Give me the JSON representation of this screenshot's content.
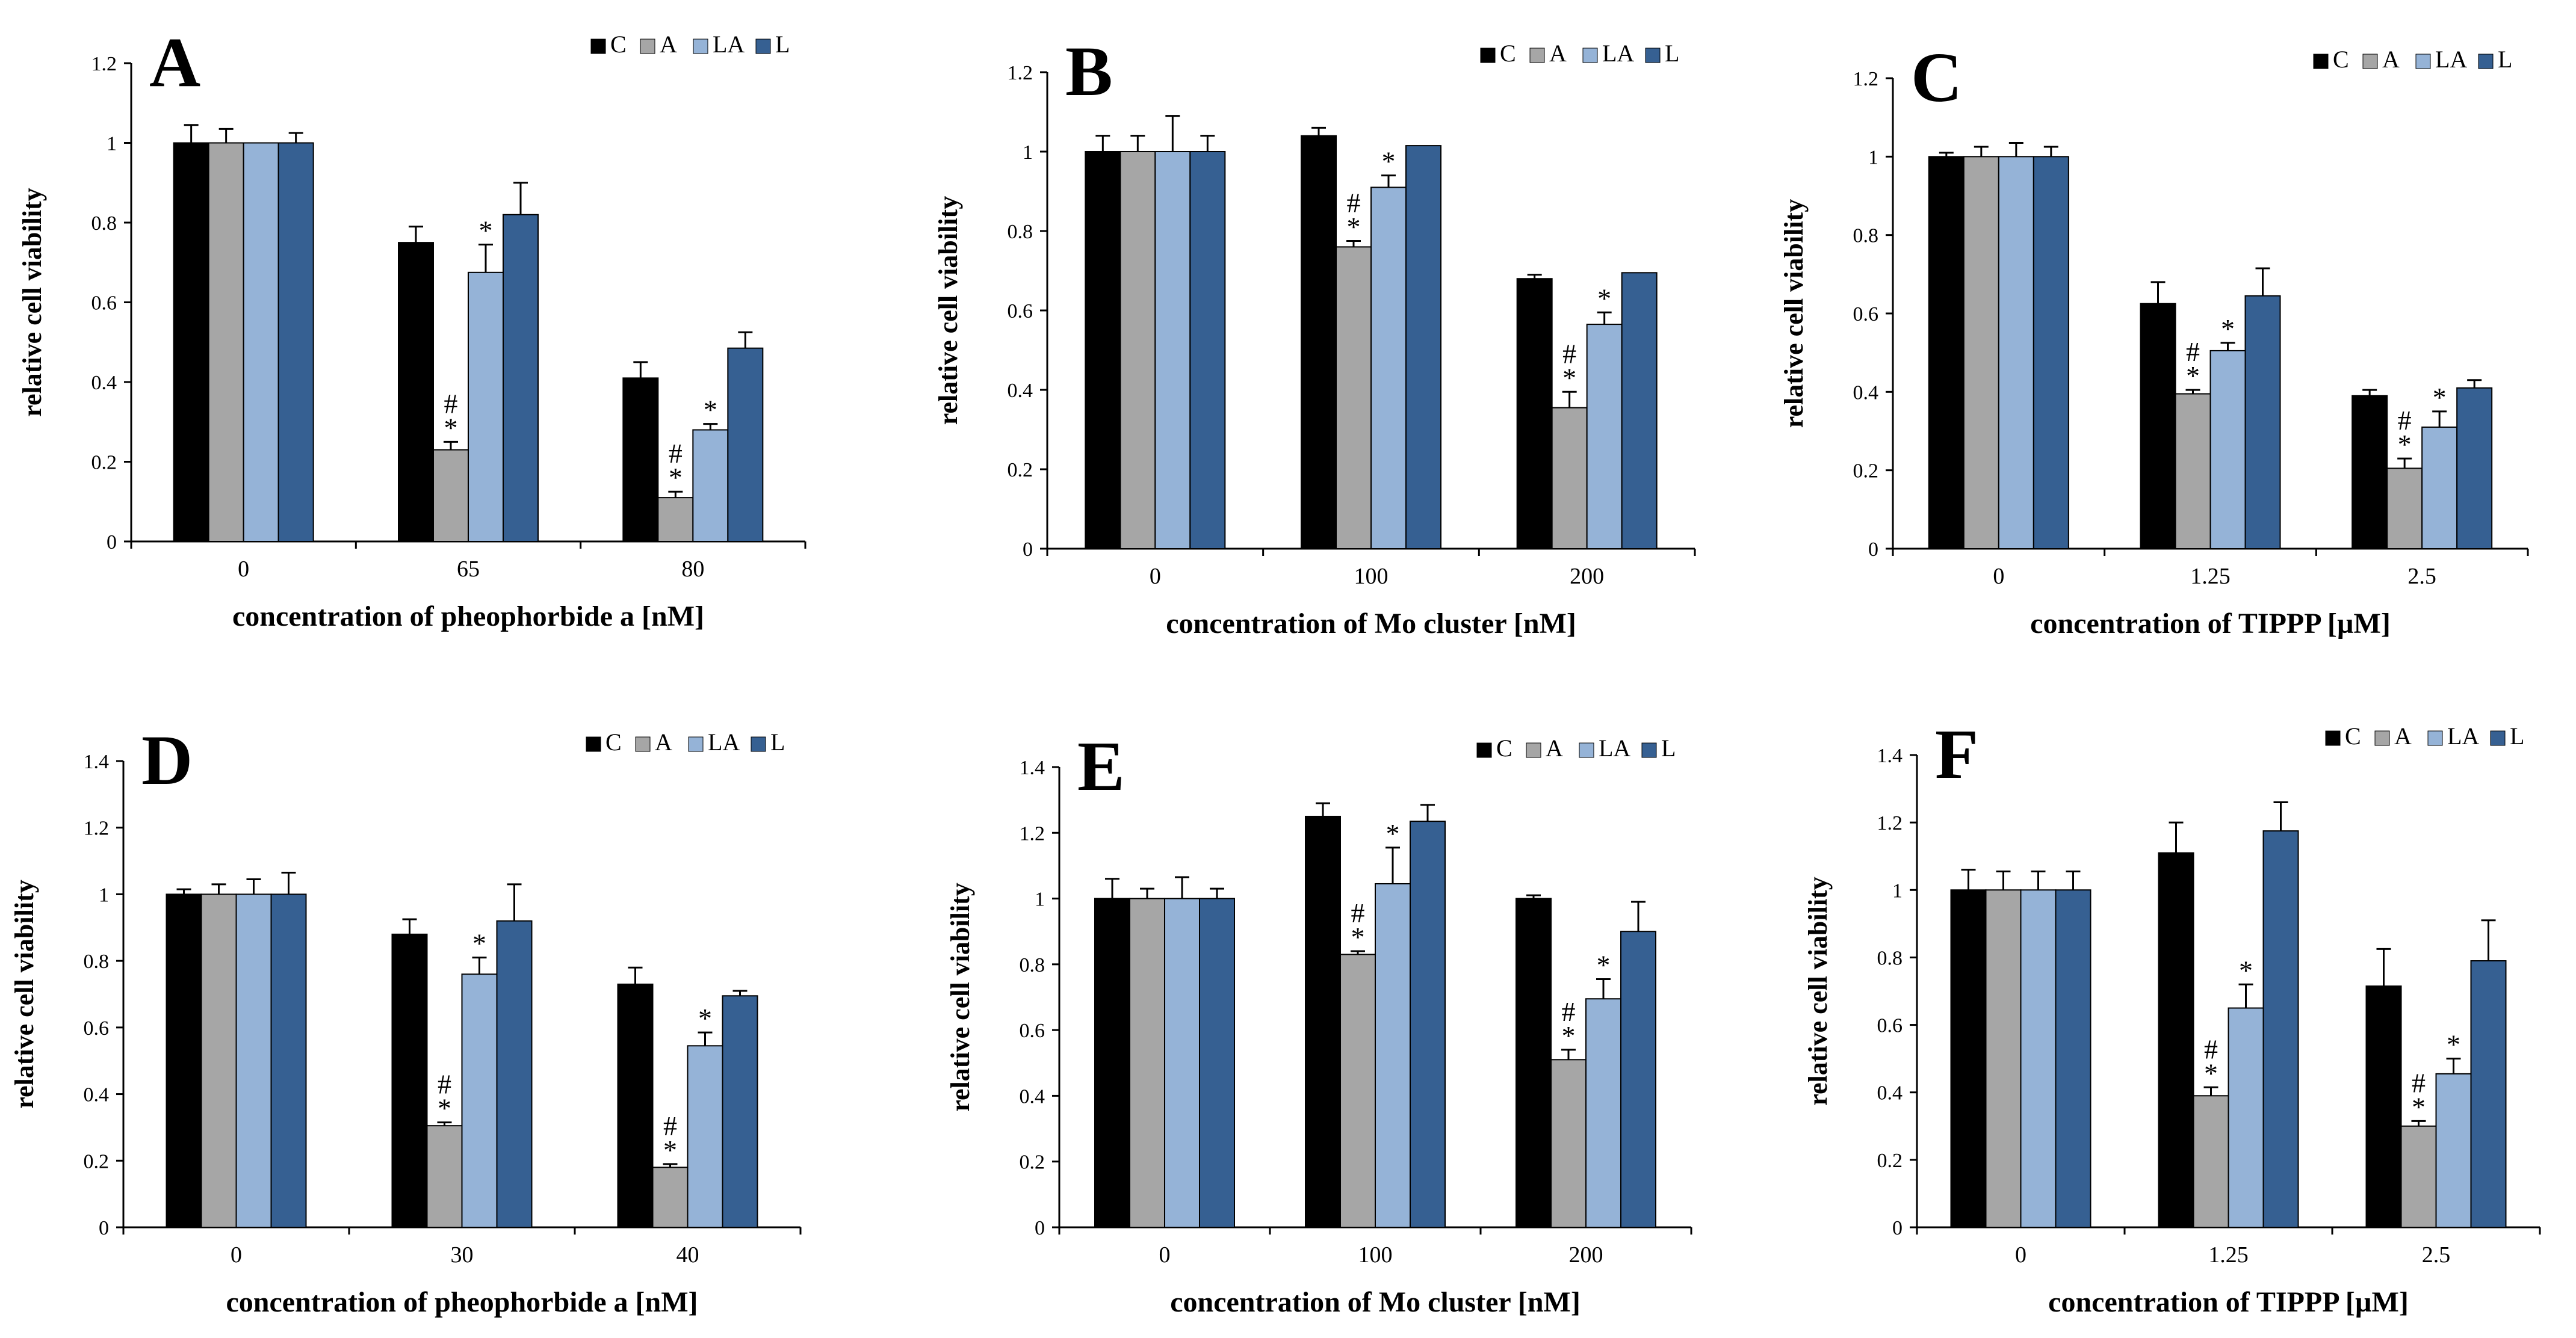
{
  "chart_data": [
    {
      "type": "bar",
      "panel": "A",
      "categories": [
        "0",
        "65",
        "80"
      ],
      "series": [
        {
          "name": "C",
          "color": "#000000",
          "values": [
            1.0,
            0.75,
            0.41
          ],
          "errors": [
            0.045,
            0.04,
            0.04
          ]
        },
        {
          "name": "A",
          "color": "#a6a6a6",
          "values": [
            1.0,
            0.23,
            0.11
          ],
          "errors": [
            0.035,
            0.02,
            0.015
          ]
        },
        {
          "name": "LA",
          "color": "#95b3d7",
          "values": [
            1.0,
            0.675,
            0.28
          ],
          "errors": [
            0.0,
            0.07,
            0.015
          ]
        },
        {
          "name": "L",
          "color": "#366092",
          "values": [
            1.0,
            0.82,
            0.485
          ],
          "errors": [
            0.025,
            0.08,
            0.04
          ]
        }
      ],
      "annotations": [
        {
          "category": "65",
          "series": "A",
          "text": "*\n#"
        },
        {
          "category": "65",
          "series": "LA",
          "text": "*"
        },
        {
          "category": "80",
          "series": "A",
          "text": "*\n#"
        },
        {
          "category": "80",
          "series": "LA",
          "text": "*"
        }
      ],
      "yticks": [
        "0",
        "0.2",
        "0.4",
        "0.6",
        "0.8",
        "1",
        "1.2"
      ],
      "ylim": [
        0,
        1.2
      ],
      "xlabel": "concentration of pheophorbide a [nM]",
      "ylabel": "relative cell viability",
      "legend": "top-right"
    },
    {
      "type": "bar",
      "panel": "B",
      "categories": [
        "0",
        "100",
        "200"
      ],
      "series": [
        {
          "name": "C",
          "color": "#000000",
          "values": [
            1.0,
            1.04,
            0.68
          ],
          "errors": [
            0.04,
            0.02,
            0.01
          ]
        },
        {
          "name": "A",
          "color": "#a6a6a6",
          "values": [
            1.0,
            0.76,
            0.355
          ],
          "errors": [
            0.04,
            0.015,
            0.04
          ]
        },
        {
          "name": "LA",
          "color": "#95b3d7",
          "values": [
            1.0,
            0.91,
            0.565
          ],
          "errors": [
            0.09,
            0.03,
            0.03
          ]
        },
        {
          "name": "L",
          "color": "#366092",
          "values": [
            1.0,
            1.015,
            0.695
          ],
          "errors": [
            0.04,
            0.0,
            0.0
          ]
        }
      ],
      "annotations": [
        {
          "category": "100",
          "series": "A",
          "text": "*\n#"
        },
        {
          "category": "100",
          "series": "LA",
          "text": "*"
        },
        {
          "category": "200",
          "series": "A",
          "text": "*\n#"
        },
        {
          "category": "200",
          "series": "LA",
          "text": "*"
        }
      ],
      "yticks": [
        "0",
        "0.2",
        "0.4",
        "0.6",
        "0.8",
        "1",
        "1.2"
      ],
      "ylim": [
        0,
        1.2
      ],
      "xlabel": "concentration of Mo cluster [nM]",
      "ylabel": "relative cell viability",
      "legend": "top-right"
    },
    {
      "type": "bar",
      "panel": "C",
      "categories": [
        "0",
        "1.25",
        "2.5"
      ],
      "series": [
        {
          "name": "C",
          "color": "#000000",
          "values": [
            1.0,
            0.625,
            0.39
          ],
          "errors": [
            0.01,
            0.055,
            0.015
          ]
        },
        {
          "name": "A",
          "color": "#a6a6a6",
          "values": [
            1.0,
            0.395,
            0.205
          ],
          "errors": [
            0.025,
            0.01,
            0.025
          ]
        },
        {
          "name": "LA",
          "color": "#95b3d7",
          "values": [
            1.0,
            0.505,
            0.31
          ],
          "errors": [
            0.035,
            0.02,
            0.04
          ]
        },
        {
          "name": "L",
          "color": "#366092",
          "values": [
            1.0,
            0.645,
            0.41
          ],
          "errors": [
            0.025,
            0.07,
            0.02
          ]
        }
      ],
      "annotations": [
        {
          "category": "1.25",
          "series": "A",
          "text": "*\n#"
        },
        {
          "category": "1.25",
          "series": "LA",
          "text": "*"
        },
        {
          "category": "2.5",
          "series": "A",
          "text": "*\n#"
        },
        {
          "category": "2.5",
          "series": "LA",
          "text": "*"
        }
      ],
      "yticks": [
        "0",
        "0.2",
        "0.4",
        "0.6",
        "0.8",
        "1",
        "1.2"
      ],
      "ylim": [
        0,
        1.2
      ],
      "xlabel": "concentration of TIPPP [µM]",
      "ylabel": "relative cell viability",
      "legend": "top-right"
    },
    {
      "type": "bar",
      "panel": "D",
      "categories": [
        "0",
        "30",
        "40"
      ],
      "series": [
        {
          "name": "C",
          "color": "#000000",
          "values": [
            1.0,
            0.88,
            0.73
          ],
          "errors": [
            0.015,
            0.045,
            0.05
          ]
        },
        {
          "name": "A",
          "color": "#a6a6a6",
          "values": [
            1.0,
            0.305,
            0.18
          ],
          "errors": [
            0.03,
            0.01,
            0.01
          ]
        },
        {
          "name": "LA",
          "color": "#95b3d7",
          "values": [
            1.0,
            0.76,
            0.545
          ],
          "errors": [
            0.045,
            0.05,
            0.04
          ]
        },
        {
          "name": "L",
          "color": "#366092",
          "values": [
            1.0,
            0.92,
            0.695
          ],
          "errors": [
            0.065,
            0.11,
            0.015
          ]
        }
      ],
      "annotations": [
        {
          "category": "30",
          "series": "A",
          "text": "*\n#"
        },
        {
          "category": "30",
          "series": "LA",
          "text": "*"
        },
        {
          "category": "40",
          "series": "A",
          "text": "*\n#"
        },
        {
          "category": "40",
          "series": "LA",
          "text": "*"
        }
      ],
      "yticks": [
        "0",
        "0.2",
        "0.4",
        "0.6",
        "0.8",
        "1",
        "1.2",
        "1.4"
      ],
      "ylim": [
        0,
        1.4
      ],
      "xlabel": "concentration of pheophorbide a [nM]",
      "ylabel": "relative cell viability",
      "legend": "top-right"
    },
    {
      "type": "bar",
      "panel": "E",
      "categories": [
        "0",
        "100",
        "200"
      ],
      "series": [
        {
          "name": "C",
          "color": "#000000",
          "values": [
            1.0,
            1.25,
            1.0
          ],
          "errors": [
            0.06,
            0.04,
            0.01
          ]
        },
        {
          "name": "A",
          "color": "#a6a6a6",
          "values": [
            1.0,
            0.83,
            0.51
          ],
          "errors": [
            0.03,
            0.01,
            0.03
          ]
        },
        {
          "name": "LA",
          "color": "#95b3d7",
          "values": [
            1.0,
            1.045,
            0.695
          ],
          "errors": [
            0.065,
            0.11,
            0.06
          ]
        },
        {
          "name": "L",
          "color": "#366092",
          "values": [
            1.0,
            1.235,
            0.9
          ],
          "errors": [
            0.03,
            0.05,
            0.09
          ]
        }
      ],
      "annotations": [
        {
          "category": "100",
          "series": "A",
          "text": "*\n#"
        },
        {
          "category": "100",
          "series": "LA",
          "text": "*"
        },
        {
          "category": "200",
          "series": "A",
          "text": "*\n#"
        },
        {
          "category": "200",
          "series": "LA",
          "text": "*"
        }
      ],
      "yticks": [
        "0",
        "0.2",
        "0.4",
        "0.6",
        "0.8",
        "1",
        "1.2",
        "1.4"
      ],
      "ylim": [
        0,
        1.4
      ],
      "xlabel": "concentration of Mo cluster [nM]",
      "ylabel": "relative cell viability",
      "legend": "top-right"
    },
    {
      "type": "bar",
      "panel": "F",
      "categories": [
        "0",
        "1.25",
        "2.5"
      ],
      "series": [
        {
          "name": "C",
          "color": "#000000",
          "values": [
            1.0,
            1.11,
            0.715
          ],
          "errors": [
            0.06,
            0.09,
            0.11
          ]
        },
        {
          "name": "A",
          "color": "#a6a6a6",
          "values": [
            1.0,
            0.39,
            0.3
          ],
          "errors": [
            0.055,
            0.025,
            0.015
          ]
        },
        {
          "name": "LA",
          "color": "#95b3d7",
          "values": [
            1.0,
            0.65,
            0.455
          ],
          "errors": [
            0.055,
            0.07,
            0.045
          ]
        },
        {
          "name": "L",
          "color": "#366092",
          "values": [
            1.0,
            1.175,
            0.79
          ],
          "errors": [
            0.055,
            0.085,
            0.12
          ]
        }
      ],
      "annotations": [
        {
          "category": "1.25",
          "series": "A",
          "text": "*\n#"
        },
        {
          "category": "1.25",
          "series": "LA",
          "text": "*"
        },
        {
          "category": "2.5",
          "series": "A",
          "text": "*\n#"
        },
        {
          "category": "2.5",
          "series": "LA",
          "text": "*"
        }
      ],
      "yticks": [
        "0",
        "0.2",
        "0.4",
        "0.6",
        "0.8",
        "1",
        "1.2",
        "1.4"
      ],
      "ylim": [
        0,
        1.4
      ],
      "xlabel": "concentration of TIPPP [µM]",
      "ylabel": "relative cell viability",
      "legend": "top-right"
    }
  ]
}
